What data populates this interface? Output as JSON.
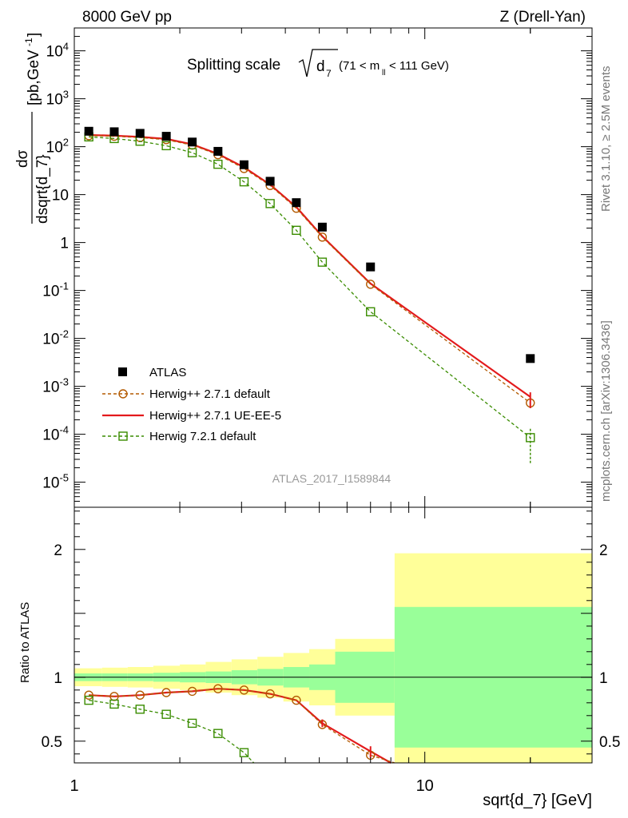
{
  "header": {
    "left": "8000 GeV pp",
    "right": "Z (Drell-Yan)"
  },
  "side_labels": {
    "top": "Rivet 3.1.10, ≥ 2.5M events",
    "bottom": "mcplots.cern.ch [arXiv:1306.3436]"
  },
  "chart_data": [
    {
      "type": "scatter",
      "panel": "main",
      "title": "Splitting scale √d₇ (71 < mₗₗ < 111 GeV)",
      "ylabel": "dσ / dsqrt{d_7} [pb,GeV⁻¹]",
      "xlabel": "sqrt{d_7} [GeV]",
      "xscale": "log",
      "yscale": "log",
      "xlim": [
        1,
        30
      ],
      "ylim": [
        3e-06,
        30000
      ],
      "watermark": "ATLAS_2017_I1589844",
      "y_ticks": [
        {
          "v": 10000.0,
          "label": "10^4"
        },
        {
          "v": 1000.0,
          "label": "10^3"
        },
        {
          "v": 100.0,
          "label": "10^2"
        },
        {
          "v": 10,
          "label": "10"
        },
        {
          "v": 1,
          "label": "1"
        },
        {
          "v": 0.1,
          "label": "10^-1"
        },
        {
          "v": 0.01,
          "label": "10^-2"
        },
        {
          "v": 0.001,
          "label": "10^-3"
        },
        {
          "v": 0.0001,
          "label": "10^-4"
        },
        {
          "v": 1e-05,
          "label": "10^-5"
        }
      ],
      "legend_placement": "lower-left",
      "series": [
        {
          "name": "ATLAS",
          "style": "data",
          "color": "#000000",
          "x": [
            1.1,
            1.3,
            1.54,
            1.83,
            2.17,
            2.57,
            3.05,
            3.62,
            4.3,
            5.1,
            7.0,
            20.0
          ],
          "y": [
            210,
            205,
            190,
            165,
            125,
            80,
            42,
            19,
            6.8,
            2.1,
            0.31,
            0.0038
          ]
        },
        {
          "name": "Herwig++ 2.7.1 default",
          "style": "circle-dashed",
          "color": "#b35a00",
          "x": [
            1.1,
            1.3,
            1.54,
            1.83,
            2.17,
            2.57,
            3.05,
            3.62,
            4.3,
            5.1,
            7.0,
            20.0
          ],
          "y": [
            170,
            165,
            155,
            140,
            108,
            68,
            35,
            15.5,
            5.2,
            1.3,
            0.135,
            0.00045
          ]
        },
        {
          "name": "Herwig++ 2.7.1 UE-EE-5",
          "style": "line",
          "color": "#e31a1c",
          "x": [
            1.1,
            1.3,
            1.54,
            1.83,
            2.17,
            2.57,
            3.05,
            3.62,
            4.3,
            5.1,
            7.0,
            20.0
          ],
          "y": [
            175,
            170,
            160,
            145,
            112,
            71,
            37,
            16.2,
            5.5,
            1.35,
            0.14,
            0.0006
          ]
        },
        {
          "name": "Herwig 7.2.1 default",
          "style": "square-dashed",
          "color": "#3a8c00",
          "x": [
            1.1,
            1.3,
            1.54,
            1.83,
            2.17,
            2.57,
            3.05,
            3.62,
            4.3,
            5.1,
            7.0,
            20.0
          ],
          "y": [
            160,
            148,
            130,
            105,
            75,
            43,
            18.5,
            6.5,
            1.8,
            0.39,
            0.036,
            8.5e-05
          ]
        }
      ]
    },
    {
      "type": "line",
      "panel": "ratio",
      "ylabel": "Ratio to ATLAS",
      "xscale": "log",
      "xlim": [
        1,
        30
      ],
      "ylim": [
        0.33,
        2.33
      ],
      "y_ticks": [
        {
          "v": 0.5,
          "label": "0.5"
        },
        {
          "v": 1,
          "label": "1"
        },
        {
          "v": 2,
          "label": "2"
        }
      ],
      "x_ticks": [
        {
          "v": 1,
          "label": "1"
        },
        {
          "v": 10,
          "label": "10"
        }
      ],
      "bins": [
        1.0,
        1.2,
        1.42,
        1.68,
        2.0,
        2.37,
        2.81,
        3.33,
        3.95,
        4.68,
        5.55,
        8.2,
        30.0
      ],
      "band_inner": [
        0.03,
        0.03,
        0.03,
        0.035,
        0.04,
        0.045,
        0.055,
        0.065,
        0.08,
        0.1,
        0.2,
        0.55
      ],
      "band_outer": [
        0.07,
        0.075,
        0.08,
        0.09,
        0.1,
        0.12,
        0.14,
        0.16,
        0.19,
        0.22,
        0.3,
        0.97
      ],
      "series": [
        {
          "name": "Herwig++ 2.7.1 default",
          "color": "#b35a00",
          "x": [
            1.1,
            1.3,
            1.54,
            1.83,
            2.17,
            2.57,
            3.05,
            3.62,
            4.3,
            5.1,
            7.0,
            8.2
          ],
          "y": [
            0.86,
            0.85,
            0.86,
            0.88,
            0.89,
            0.91,
            0.9,
            0.87,
            0.82,
            0.63,
            0.39,
            0.3
          ]
        },
        {
          "name": "Herwig++ 2.7.1 UE-EE-5",
          "color": "#e31a1c",
          "x": [
            1.1,
            1.3,
            1.54,
            1.83,
            2.17,
            2.57,
            3.05,
            3.62,
            4.3,
            5.1,
            7.0,
            8.0
          ],
          "y": [
            0.86,
            0.85,
            0.86,
            0.88,
            0.89,
            0.91,
            0.9,
            0.87,
            0.82,
            0.64,
            0.42,
            0.3
          ]
        },
        {
          "name": "Herwig 7.2.1 default",
          "color": "#3a8c00",
          "x": [
            1.1,
            1.3,
            1.54,
            1.83,
            2.17,
            2.57,
            3.05,
            3.25
          ],
          "y": [
            0.82,
            0.79,
            0.75,
            0.71,
            0.64,
            0.56,
            0.41,
            0.3
          ]
        }
      ]
    }
  ]
}
